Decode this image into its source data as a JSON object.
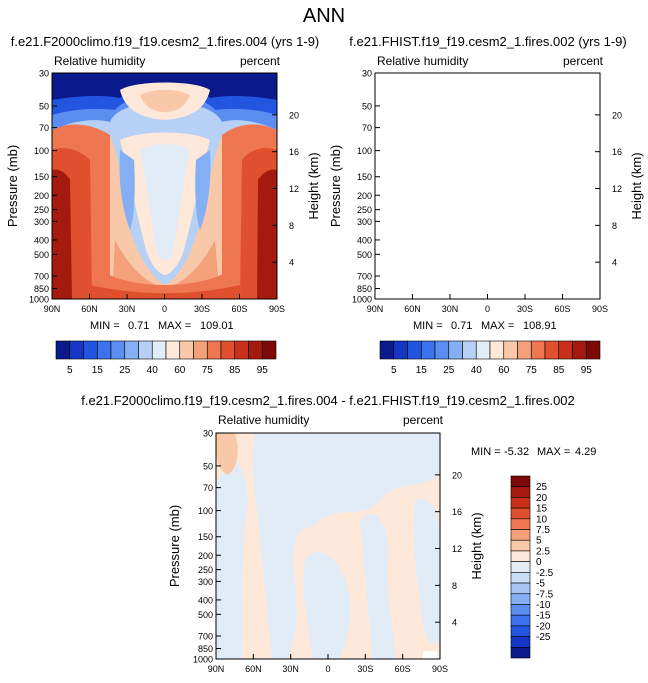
{
  "main_title": "ANN",
  "chart_data": [
    {
      "type": "heatmap",
      "title": "f.e21.F2000climo.f19_f19.cesm2_1.fires.004 (yrs 1-9)",
      "left_string": "Relative humidity",
      "right_string": "percent",
      "ylabel": "Pressure (mb)",
      "ylabel_right": "Height (km)",
      "xticks": [
        "90N",
        "60N",
        "30N",
        "0",
        "30S",
        "60S",
        "90S"
      ],
      "yticks": [
        "30",
        "50",
        "70",
        "100",
        "150",
        "200",
        "250",
        "300",
        "400",
        "500",
        "700",
        "850",
        "1000"
      ],
      "yticks_right": [
        "20",
        "16",
        "12",
        "8",
        "4"
      ],
      "min_label": "MIN =",
      "min_value": "0.71",
      "max_label": "MAX =",
      "max_value": "109.01"
    },
    {
      "type": "heatmap",
      "title": "f.e21.FHIST.f19_f19.cesm2_1.fires.002 (yrs 1-9)",
      "left_string": "Relative humidity",
      "right_string": "percent",
      "ylabel": "Pressure (mb)",
      "ylabel_right": "Height (km)",
      "xticks": [
        "90N",
        "60N",
        "30N",
        "0",
        "30S",
        "60S",
        "90S"
      ],
      "yticks": [
        "30",
        "50",
        "70",
        "100",
        "150",
        "200",
        "250",
        "300",
        "400",
        "500",
        "700",
        "850",
        "1000"
      ],
      "yticks_right": [
        "20",
        "16",
        "12",
        "8",
        "4"
      ],
      "min_label": "MIN =",
      "min_value": "0.71",
      "max_label": "MAX =",
      "max_value": "108.91"
    },
    {
      "type": "heatmap",
      "title": "f.e21.F2000climo.f19_f19.cesm2_1.fires.004 - f.e21.FHIST.f19_f19.cesm2_1.fires.002",
      "left_string": "Relative humidity",
      "right_string": "percent",
      "ylabel": "Pressure (mb)",
      "ylabel_right": "Height (km)",
      "xticks": [
        "90N",
        "60N",
        "30N",
        "0",
        "30S",
        "60S",
        "90S"
      ],
      "yticks": [
        "30",
        "50",
        "70",
        "100",
        "150",
        "200",
        "250",
        "300",
        "400",
        "500",
        "700",
        "850",
        "1000"
      ],
      "yticks_right": [
        "20",
        "16",
        "12",
        "8",
        "4"
      ],
      "min_label": "MIN =",
      "min_value": "-5.32",
      "max_label": "MAX =",
      "max_value": "4.29"
    }
  ],
  "colorbar_main": {
    "colors": [
      "#0a1a8c",
      "#1536c4",
      "#2255e0",
      "#3c72ee",
      "#5c8ef2",
      "#85aff5",
      "#b6d0f6",
      "#e2ecf7",
      "#fde8d9",
      "#f9c8a8",
      "#f4a07a",
      "#ee7650",
      "#e0502e",
      "#c8301a",
      "#a51a0e",
      "#7d0a06"
    ],
    "labels": [
      "5",
      "15",
      "25",
      "40",
      "60",
      "75",
      "85",
      "95"
    ]
  },
  "colorbar_diff": {
    "colors": [
      "#7d0a06",
      "#a51a0e",
      "#c8301a",
      "#e0502e",
      "#ee7650",
      "#f4a07a",
      "#f9c8a8",
      "#fde8d9",
      "#e2ecf7",
      "#c8dcf6",
      "#a8c4f4",
      "#85aff5",
      "#5c8ef2",
      "#3c72ee",
      "#2255e0",
      "#1536c4",
      "#0a1a8c"
    ],
    "labels": [
      "25",
      "20",
      "15",
      "10",
      "7.5",
      "5",
      "2.5",
      "0",
      "-2.5",
      "-5",
      "-7.5",
      "-10",
      "-15",
      "-20",
      "-25"
    ]
  }
}
